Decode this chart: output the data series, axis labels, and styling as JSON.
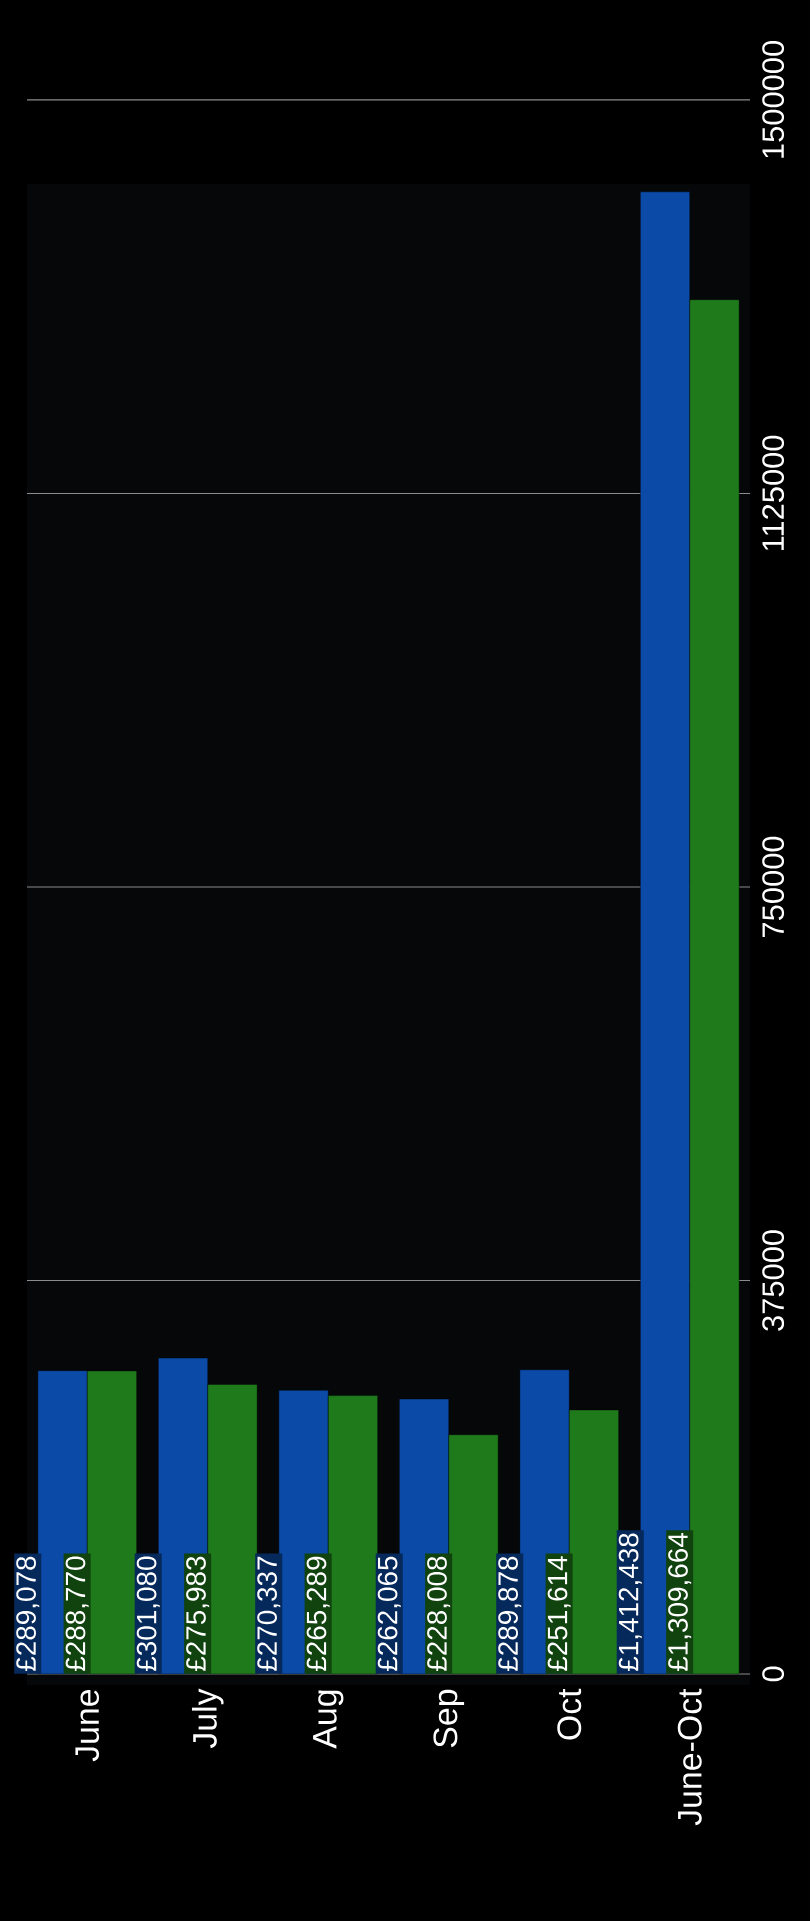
{
  "chart_data": {
    "type": "bar",
    "categories": [
      "June",
      "July",
      "Aug",
      "Sep",
      "Oct",
      "June-Oct"
    ],
    "series": [
      {
        "color": "#0b4aa6",
        "values": [
          289078,
          301080,
          270337,
          262065,
          289878,
          1412438
        ],
        "value_labels": [
          "£289,078",
          "£301,080",
          "£270,337",
          "£262,065",
          "£289,878",
          "£1,412,438"
        ]
      },
      {
        "color": "#1f7a1c",
        "values": [
          288770,
          275983,
          265289,
          228008,
          251614,
          1309664
        ],
        "value_labels": [
          "£288,770",
          "£275,983",
          "£265,289",
          "£228,008",
          "£251,614",
          "£1,309,664"
        ]
      }
    ],
    "ylim": [
      0,
      1500000
    ],
    "yticks": [
      0,
      375000,
      750000,
      1125000,
      1500000
    ],
    "grid": "y"
  }
}
